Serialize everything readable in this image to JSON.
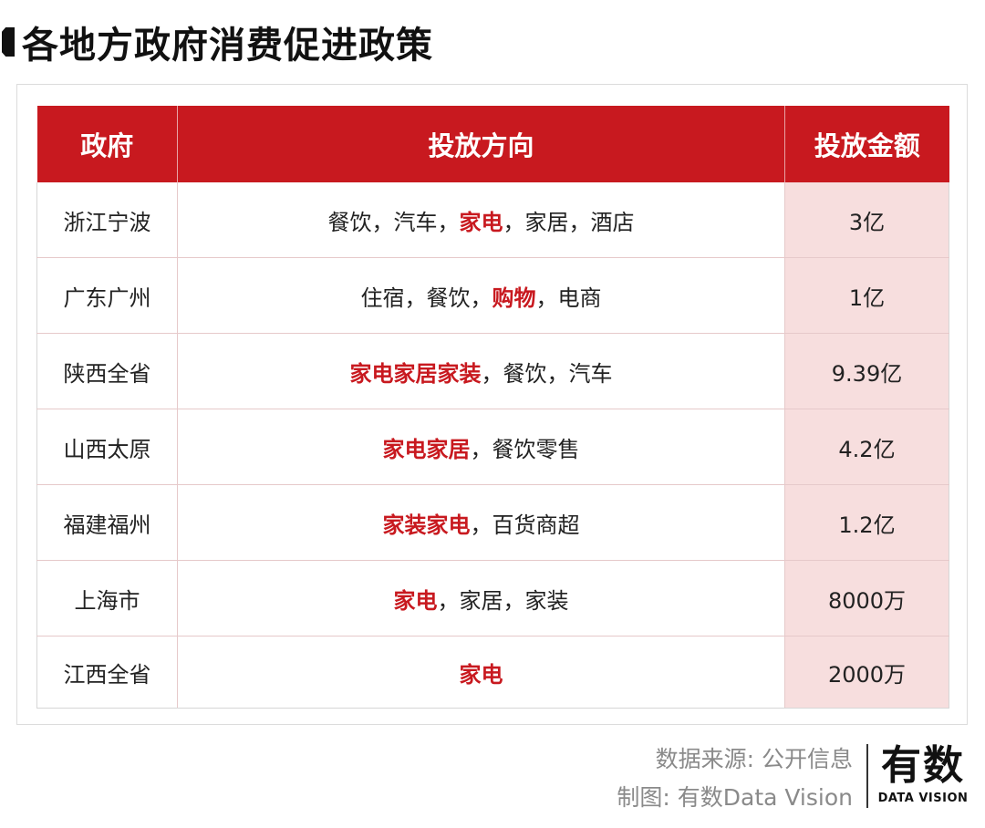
{
  "title": "各地方政府消费促进政策",
  "table": {
    "headers": [
      "政府",
      "投放方向",
      "投放金额"
    ],
    "rows": [
      {
        "gov": "浙江宁波",
        "direction": [
          {
            "t": "餐饮，汽车，",
            "hl": false
          },
          {
            "t": "家电",
            "hl": true
          },
          {
            "t": "，家居，酒店",
            "hl": false
          }
        ],
        "amount": "3亿"
      },
      {
        "gov": "广东广州",
        "direction": [
          {
            "t": "住宿，餐饮，",
            "hl": false
          },
          {
            "t": "购物",
            "hl": true
          },
          {
            "t": "，电商",
            "hl": false
          }
        ],
        "amount": "1亿"
      },
      {
        "gov": "陕西全省",
        "direction": [
          {
            "t": "家电家居家装",
            "hl": true
          },
          {
            "t": "，餐饮，汽车",
            "hl": false
          }
        ],
        "amount": "9.39亿"
      },
      {
        "gov": "山西太原",
        "direction": [
          {
            "t": "家电家居",
            "hl": true
          },
          {
            "t": "，餐饮零售",
            "hl": false
          }
        ],
        "amount": "4.2亿"
      },
      {
        "gov": "福建福州",
        "direction": [
          {
            "t": "家装家电",
            "hl": true
          },
          {
            "t": "，百货商超",
            "hl": false
          }
        ],
        "amount": "1.2亿"
      },
      {
        "gov": "上海市",
        "direction": [
          {
            "t": "家电",
            "hl": true
          },
          {
            "t": "，家居，家装",
            "hl": false
          }
        ],
        "amount": "8000万"
      },
      {
        "gov": "江西全省",
        "direction": [
          {
            "t": "家电",
            "hl": true
          }
        ],
        "amount": "2000万"
      }
    ]
  },
  "footer": {
    "source": "数据来源: 公开信息",
    "credit": "制图: 有数Data Vision"
  },
  "logo": {
    "main": "有数",
    "sub": "DATA VISION"
  },
  "colors": {
    "accent": "#c8191f",
    "amount_bg": "#f7dede"
  }
}
